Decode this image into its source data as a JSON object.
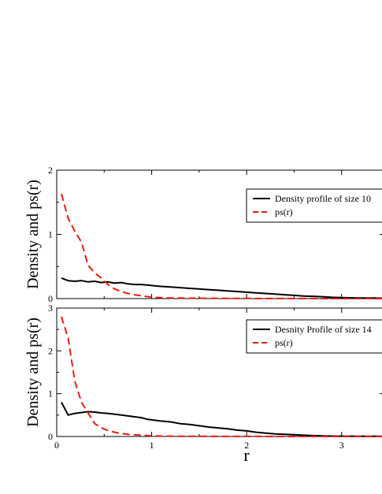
{
  "chart_data": [
    {
      "type": "line",
      "ylabel": "Density and ps(r)",
      "xlabel": "",
      "xlim": [
        0,
        3.45
      ],
      "ylim": [
        0,
        2
      ],
      "yticks": [
        "0",
        "1",
        "2"
      ],
      "xticks": [],
      "legend_position": "top-right",
      "grid": false,
      "series": [
        {
          "name": "Density profile of size 10",
          "color": "#000000",
          "dash": "solid",
          "x": [
            0.05,
            0.12,
            0.19,
            0.26,
            0.33,
            0.4,
            0.47,
            0.54,
            0.61,
            0.68,
            0.75,
            0.82,
            0.89,
            0.96,
            1.03,
            1.1,
            1.2,
            1.3,
            1.4,
            1.5,
            1.6,
            1.7,
            1.8,
            1.9,
            2.0,
            2.1,
            2.2,
            2.3,
            2.4,
            2.5,
            2.6,
            2.7,
            2.8,
            2.9,
            3.0,
            3.1,
            3.2,
            3.3,
            3.45
          ],
          "y": [
            0.32,
            0.28,
            0.27,
            0.28,
            0.26,
            0.27,
            0.25,
            0.26,
            0.24,
            0.25,
            0.23,
            0.22,
            0.22,
            0.21,
            0.2,
            0.19,
            0.18,
            0.17,
            0.16,
            0.15,
            0.14,
            0.13,
            0.12,
            0.11,
            0.1,
            0.09,
            0.08,
            0.07,
            0.06,
            0.05,
            0.04,
            0.035,
            0.03,
            0.02,
            0.015,
            0.012,
            0.01,
            0.008,
            0.005
          ]
        },
        {
          "name": "ps(r)",
          "color": "#e8190f",
          "dash": "dashed",
          "x": [
            0.05,
            0.12,
            0.19,
            0.26,
            0.33,
            0.4,
            0.47,
            0.54,
            0.61,
            0.68,
            0.75,
            0.82,
            0.89,
            0.96,
            1.03,
            1.1,
            1.2,
            1.3,
            1.5,
            2.0,
            2.5,
            3.0,
            3.45
          ],
          "y": [
            1.63,
            1.25,
            1.05,
            0.88,
            0.52,
            0.4,
            0.32,
            0.22,
            0.15,
            0.11,
            0.08,
            0.06,
            0.045,
            0.03,
            0.02,
            0.015,
            0.01,
            0.008,
            0.005,
            0.002,
            0.001,
            0.0,
            0.0
          ]
        }
      ]
    },
    {
      "type": "line",
      "ylabel": "Density and ps(r)",
      "xlabel": "r",
      "xlim": [
        0,
        3.45
      ],
      "ylim": [
        0,
        3
      ],
      "yticks": [
        "0",
        "1",
        "2",
        "3"
      ],
      "xticks": [
        "0",
        "1",
        "2",
        "3"
      ],
      "legend_position": "top-right",
      "grid": false,
      "series": [
        {
          "name": "Desnity Profile of size 14",
          "color": "#000000",
          "dash": "solid",
          "x": [
            0.05,
            0.12,
            0.19,
            0.26,
            0.33,
            0.4,
            0.47,
            0.54,
            0.61,
            0.68,
            0.75,
            0.82,
            0.89,
            0.96,
            1.03,
            1.1,
            1.2,
            1.3,
            1.4,
            1.5,
            1.6,
            1.7,
            1.8,
            1.9,
            2.0,
            2.1,
            2.2,
            2.3,
            2.4,
            2.5,
            2.6,
            2.7,
            2.8,
            2.9,
            3.0,
            3.2,
            3.45
          ],
          "y": [
            0.8,
            0.5,
            0.54,
            0.56,
            0.58,
            0.57,
            0.55,
            0.54,
            0.52,
            0.5,
            0.48,
            0.46,
            0.44,
            0.4,
            0.38,
            0.36,
            0.34,
            0.3,
            0.28,
            0.25,
            0.22,
            0.2,
            0.18,
            0.15,
            0.13,
            0.1,
            0.08,
            0.06,
            0.05,
            0.04,
            0.03,
            0.02,
            0.015,
            0.01,
            0.008,
            0.005,
            0.003
          ]
        },
        {
          "name": "ps(r)",
          "color": "#e8190f",
          "dash": "dashed",
          "x": [
            0.05,
            0.12,
            0.19,
            0.26,
            0.33,
            0.4,
            0.47,
            0.54,
            0.61,
            0.68,
            0.75,
            0.82,
            0.89,
            0.96,
            1.03,
            1.1,
            1.2,
            1.3,
            1.5,
            2.0,
            2.5,
            3.0,
            3.45
          ],
          "y": [
            2.8,
            2.3,
            1.3,
            0.8,
            0.55,
            0.3,
            0.2,
            0.14,
            0.1,
            0.07,
            0.05,
            0.04,
            0.03,
            0.02,
            0.015,
            0.01,
            0.008,
            0.005,
            0.003,
            0.001,
            0.0,
            0.0,
            0.0
          ]
        }
      ]
    }
  ]
}
